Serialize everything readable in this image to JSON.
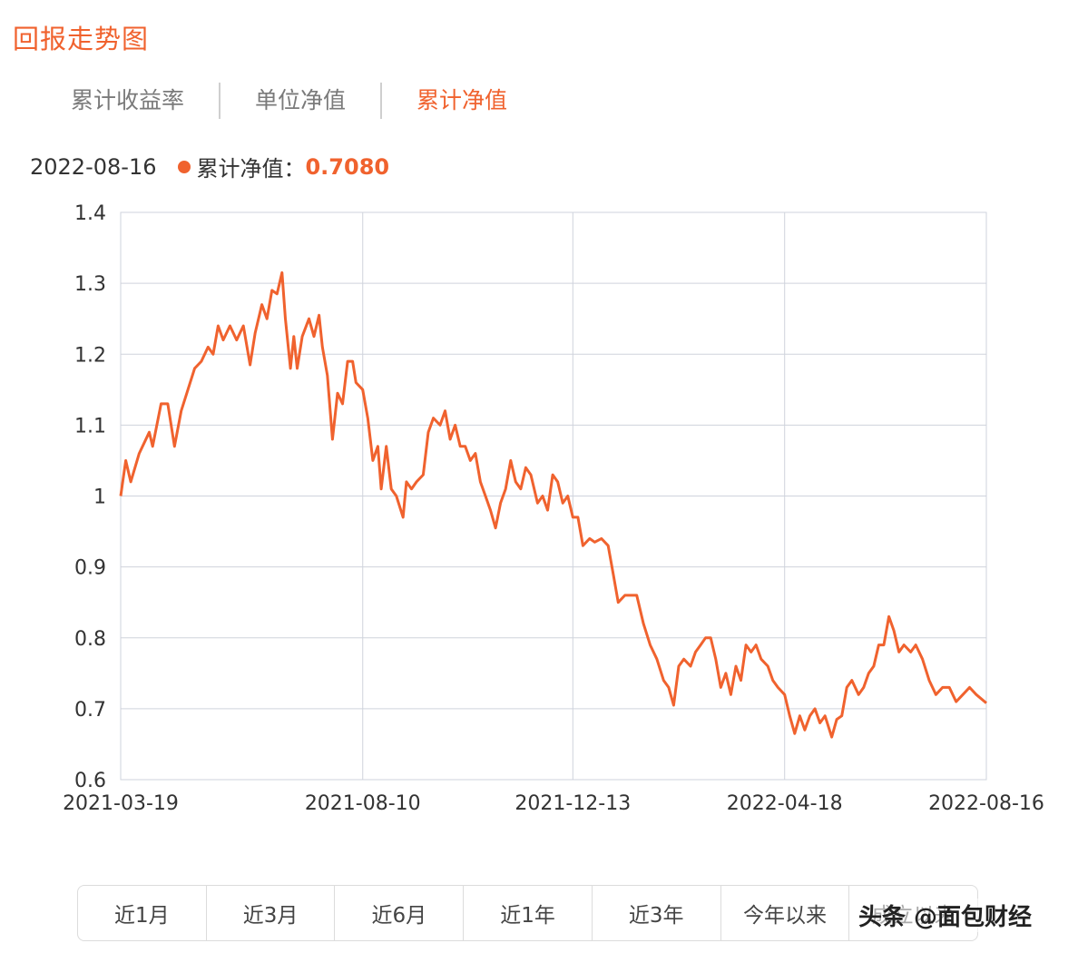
{
  "title": "回报走势图",
  "tabs": [
    {
      "label": "累计收益率",
      "active": false
    },
    {
      "label": "单位净值",
      "active": false
    },
    {
      "label": "累计净值",
      "active": true
    }
  ],
  "tooltip": {
    "date": "2022-08-16",
    "label": "累计净值：",
    "value": "0.7080"
  },
  "ranges": [
    "近1月",
    "近3月",
    "近6月",
    "近1年",
    "近3年",
    "今年以来",
    "成立以来"
  ],
  "watermark": "头条 @面包财经",
  "colors": {
    "accent": "#f0622e",
    "grid": "#cfd3dc"
  },
  "chart_data": {
    "type": "line",
    "title": "",
    "xlabel": "",
    "ylabel": "",
    "ylim": [
      0.6,
      1.4
    ],
    "yticks": [
      "0.6",
      "0.7",
      "0.8",
      "0.9",
      "1",
      "1.1",
      "1.2",
      "1.3",
      "1.4"
    ],
    "xticks": [
      "2021-03-19",
      "2021-08-10",
      "2021-12-13",
      "2022-04-18",
      "2022-08-16"
    ],
    "grid": true,
    "series": [
      {
        "name": "累计净值",
        "color": "#f0622e",
        "points": [
          [
            "2021-03-19",
            1.0
          ],
          [
            "2021-03-22",
            1.05
          ],
          [
            "2021-03-25",
            1.02
          ],
          [
            "2021-03-30",
            1.06
          ],
          [
            "2021-04-05",
            1.09
          ],
          [
            "2021-04-07",
            1.07
          ],
          [
            "2021-04-12",
            1.13
          ],
          [
            "2021-04-16",
            1.13
          ],
          [
            "2021-04-20",
            1.07
          ],
          [
            "2021-04-24",
            1.12
          ],
          [
            "2021-04-28",
            1.15
          ],
          [
            "2021-05-02",
            1.18
          ],
          [
            "2021-05-06",
            1.19
          ],
          [
            "2021-05-10",
            1.21
          ],
          [
            "2021-05-13",
            1.2
          ],
          [
            "2021-05-16",
            1.24
          ],
          [
            "2021-05-19",
            1.22
          ],
          [
            "2021-05-23",
            1.24
          ],
          [
            "2021-05-27",
            1.22
          ],
          [
            "2021-05-31",
            1.24
          ],
          [
            "2021-06-04",
            1.185
          ],
          [
            "2021-06-07",
            1.23
          ],
          [
            "2021-06-11",
            1.27
          ],
          [
            "2021-06-14",
            1.25
          ],
          [
            "2021-06-17",
            1.29
          ],
          [
            "2021-06-20",
            1.285
          ],
          [
            "2021-06-23",
            1.315
          ],
          [
            "2021-06-25",
            1.25
          ],
          [
            "2021-06-28",
            1.18
          ],
          [
            "2021-06-30",
            1.225
          ],
          [
            "2021-07-02",
            1.18
          ],
          [
            "2021-07-05",
            1.225
          ],
          [
            "2021-07-09",
            1.25
          ],
          [
            "2021-07-12",
            1.225
          ],
          [
            "2021-07-15",
            1.255
          ],
          [
            "2021-07-17",
            1.21
          ],
          [
            "2021-07-20",
            1.17
          ],
          [
            "2021-07-23",
            1.08
          ],
          [
            "2021-07-26",
            1.145
          ],
          [
            "2021-07-29",
            1.13
          ],
          [
            "2021-08-01",
            1.19
          ],
          [
            "2021-08-04",
            1.19
          ],
          [
            "2021-08-06",
            1.16
          ],
          [
            "2021-08-10",
            1.15
          ],
          [
            "2021-08-13",
            1.11
          ],
          [
            "2021-08-16",
            1.05
          ],
          [
            "2021-08-19",
            1.07
          ],
          [
            "2021-08-21",
            1.01
          ],
          [
            "2021-08-24",
            1.07
          ],
          [
            "2021-08-27",
            1.01
          ],
          [
            "2021-08-30",
            1.0
          ],
          [
            "2021-09-03",
            0.97
          ],
          [
            "2021-09-05",
            1.02
          ],
          [
            "2021-09-08",
            1.01
          ],
          [
            "2021-09-11",
            1.02
          ],
          [
            "2021-09-15",
            1.03
          ],
          [
            "2021-09-18",
            1.09
          ],
          [
            "2021-09-21",
            1.11
          ],
          [
            "2021-09-25",
            1.1
          ],
          [
            "2021-09-28",
            1.12
          ],
          [
            "2021-10-01",
            1.08
          ],
          [
            "2021-10-04",
            1.1
          ],
          [
            "2021-10-07",
            1.07
          ],
          [
            "2021-10-10",
            1.07
          ],
          [
            "2021-10-13",
            1.05
          ],
          [
            "2021-10-16",
            1.06
          ],
          [
            "2021-10-19",
            1.02
          ],
          [
            "2021-10-22",
            1.0
          ],
          [
            "2021-10-25",
            0.98
          ],
          [
            "2021-10-28",
            0.955
          ],
          [
            "2021-10-31",
            0.99
          ],
          [
            "2021-11-03",
            1.01
          ],
          [
            "2021-11-06",
            1.05
          ],
          [
            "2021-11-09",
            1.02
          ],
          [
            "2021-11-12",
            1.01
          ],
          [
            "2021-11-15",
            1.04
          ],
          [
            "2021-11-18",
            1.03
          ],
          [
            "2021-11-22",
            0.99
          ],
          [
            "2021-11-25",
            1.0
          ],
          [
            "2021-11-28",
            0.98
          ],
          [
            "2021-12-01",
            1.03
          ],
          [
            "2021-12-04",
            1.02
          ],
          [
            "2021-12-07",
            0.99
          ],
          [
            "2021-12-10",
            1.0
          ],
          [
            "2021-12-13",
            0.97
          ],
          [
            "2021-12-16",
            0.97
          ],
          [
            "2021-12-19",
            0.93
          ],
          [
            "2021-12-23",
            0.94
          ],
          [
            "2021-12-26",
            0.935
          ],
          [
            "2021-12-30",
            0.94
          ],
          [
            "2022-01-03",
            0.93
          ],
          [
            "2022-01-06",
            0.89
          ],
          [
            "2022-01-09",
            0.85
          ],
          [
            "2022-01-13",
            0.86
          ],
          [
            "2022-01-16",
            0.86
          ],
          [
            "2022-01-20",
            0.86
          ],
          [
            "2022-01-24",
            0.82
          ],
          [
            "2022-01-28",
            0.79
          ],
          [
            "2022-02-01",
            0.77
          ],
          [
            "2022-02-05",
            0.74
          ],
          [
            "2022-02-08",
            0.73
          ],
          [
            "2022-02-11",
            0.705
          ],
          [
            "2022-02-14",
            0.76
          ],
          [
            "2022-02-17",
            0.77
          ],
          [
            "2022-02-21",
            0.76
          ],
          [
            "2022-02-24",
            0.78
          ],
          [
            "2022-02-27",
            0.79
          ],
          [
            "2022-03-02",
            0.8
          ],
          [
            "2022-03-05",
            0.8
          ],
          [
            "2022-03-08",
            0.77
          ],
          [
            "2022-03-11",
            0.73
          ],
          [
            "2022-03-14",
            0.75
          ],
          [
            "2022-03-17",
            0.72
          ],
          [
            "2022-03-20",
            0.76
          ],
          [
            "2022-03-23",
            0.74
          ],
          [
            "2022-03-26",
            0.79
          ],
          [
            "2022-03-29",
            0.78
          ],
          [
            "2022-04-01",
            0.79
          ],
          [
            "2022-04-04",
            0.77
          ],
          [
            "2022-04-08",
            0.76
          ],
          [
            "2022-04-11",
            0.74
          ],
          [
            "2022-04-14",
            0.73
          ],
          [
            "2022-04-18",
            0.72
          ],
          [
            "2022-04-21",
            0.69
          ],
          [
            "2022-04-24",
            0.665
          ],
          [
            "2022-04-27",
            0.69
          ],
          [
            "2022-04-30",
            0.67
          ],
          [
            "2022-05-03",
            0.69
          ],
          [
            "2022-05-06",
            0.7
          ],
          [
            "2022-05-09",
            0.68
          ],
          [
            "2022-05-12",
            0.69
          ],
          [
            "2022-05-16",
            0.66
          ],
          [
            "2022-05-19",
            0.685
          ],
          [
            "2022-05-22",
            0.69
          ],
          [
            "2022-05-25",
            0.73
          ],
          [
            "2022-05-28",
            0.74
          ],
          [
            "2022-06-01",
            0.72
          ],
          [
            "2022-06-04",
            0.73
          ],
          [
            "2022-06-07",
            0.75
          ],
          [
            "2022-06-10",
            0.76
          ],
          [
            "2022-06-13",
            0.79
          ],
          [
            "2022-06-16",
            0.79
          ],
          [
            "2022-06-19",
            0.83
          ],
          [
            "2022-06-22",
            0.81
          ],
          [
            "2022-06-25",
            0.78
          ],
          [
            "2022-06-28",
            0.79
          ],
          [
            "2022-07-02",
            0.78
          ],
          [
            "2022-07-05",
            0.79
          ],
          [
            "2022-07-09",
            0.77
          ],
          [
            "2022-07-13",
            0.74
          ],
          [
            "2022-07-17",
            0.72
          ],
          [
            "2022-07-21",
            0.73
          ],
          [
            "2022-07-25",
            0.73
          ],
          [
            "2022-07-29",
            0.71
          ],
          [
            "2022-08-02",
            0.72
          ],
          [
            "2022-08-06",
            0.73
          ],
          [
            "2022-08-10",
            0.72
          ],
          [
            "2022-08-16",
            0.708
          ]
        ]
      }
    ]
  }
}
